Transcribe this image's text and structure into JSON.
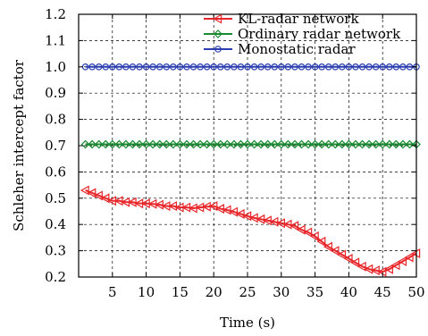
{
  "chart_data": {
    "type": "line",
    "xlabel": "Time (s)",
    "ylabel": "Schleher intercept factor",
    "xlim": [
      0,
      50
    ],
    "ylim": [
      0.2,
      1.2
    ],
    "xticks": [
      5,
      10,
      15,
      20,
      25,
      30,
      35,
      40,
      45,
      50
    ],
    "yticks": [
      0.2,
      0.3,
      0.4,
      0.5,
      0.6,
      0.7,
      0.8,
      0.9,
      1.0,
      1.1,
      1.2
    ],
    "grid": true,
    "legend_position": "top-right",
    "series": [
      {
        "name": "KL-radar network",
        "color": "#e8262a",
        "marker": "left-triangle",
        "x": [
          1,
          2,
          3,
          4,
          5,
          6,
          7,
          8,
          9,
          10,
          11,
          12,
          13,
          14,
          15,
          16,
          17,
          18,
          19,
          20,
          21,
          22,
          23,
          24,
          25,
          26,
          27,
          28,
          29,
          30,
          31,
          32,
          33,
          34,
          35,
          36,
          37,
          38,
          39,
          40,
          41,
          42,
          43,
          44,
          45,
          46,
          47,
          48,
          49,
          50
        ],
        "values": [
          0.53,
          0.52,
          0.51,
          0.5,
          0.49,
          0.49,
          0.485,
          0.485,
          0.48,
          0.48,
          0.478,
          0.475,
          0.47,
          0.47,
          0.465,
          0.465,
          0.462,
          0.465,
          0.468,
          0.47,
          0.46,
          0.455,
          0.448,
          0.44,
          0.432,
          0.425,
          0.42,
          0.415,
          0.41,
          0.405,
          0.4,
          0.395,
          0.38,
          0.37,
          0.355,
          0.335,
          0.315,
          0.3,
          0.285,
          0.27,
          0.255,
          0.24,
          0.23,
          0.225,
          0.22,
          0.23,
          0.245,
          0.26,
          0.275,
          0.29
        ]
      },
      {
        "name": "Ordinary radar network",
        "color": "#1a8a32",
        "marker": "diamond",
        "x": [
          1,
          2,
          3,
          4,
          5,
          6,
          7,
          8,
          9,
          10,
          11,
          12,
          13,
          14,
          15,
          16,
          17,
          18,
          19,
          20,
          21,
          22,
          23,
          24,
          25,
          26,
          27,
          28,
          29,
          30,
          31,
          32,
          33,
          34,
          35,
          36,
          37,
          38,
          39,
          40,
          41,
          42,
          43,
          44,
          45,
          46,
          47,
          48,
          49,
          50
        ],
        "values": [
          0.705,
          0.705,
          0.705,
          0.705,
          0.705,
          0.705,
          0.705,
          0.705,
          0.705,
          0.705,
          0.705,
          0.705,
          0.705,
          0.705,
          0.705,
          0.705,
          0.705,
          0.705,
          0.705,
          0.705,
          0.705,
          0.705,
          0.705,
          0.705,
          0.705,
          0.705,
          0.705,
          0.705,
          0.705,
          0.705,
          0.705,
          0.705,
          0.705,
          0.705,
          0.705,
          0.705,
          0.705,
          0.705,
          0.705,
          0.705,
          0.705,
          0.705,
          0.705,
          0.705,
          0.705,
          0.705,
          0.705,
          0.705,
          0.705,
          0.705
        ]
      },
      {
        "name": "Monostatic radar",
        "color": "#2b3fb0",
        "marker": "circle",
        "x": [
          1,
          2,
          3,
          4,
          5,
          6,
          7,
          8,
          9,
          10,
          11,
          12,
          13,
          14,
          15,
          16,
          17,
          18,
          19,
          20,
          21,
          22,
          23,
          24,
          25,
          26,
          27,
          28,
          29,
          30,
          31,
          32,
          33,
          34,
          35,
          36,
          37,
          38,
          39,
          40,
          41,
          42,
          43,
          44,
          45,
          46,
          47,
          48,
          49,
          50
        ],
        "values": [
          1,
          1,
          1,
          1,
          1,
          1,
          1,
          1,
          1,
          1,
          1,
          1,
          1,
          1,
          1,
          1,
          1,
          1,
          1,
          1,
          1,
          1,
          1,
          1,
          1,
          1,
          1,
          1,
          1,
          1,
          1,
          1,
          1,
          1,
          1,
          1,
          1,
          1,
          1,
          1,
          1,
          1,
          1,
          1,
          1,
          1,
          1,
          1,
          1,
          1
        ]
      }
    ]
  }
}
